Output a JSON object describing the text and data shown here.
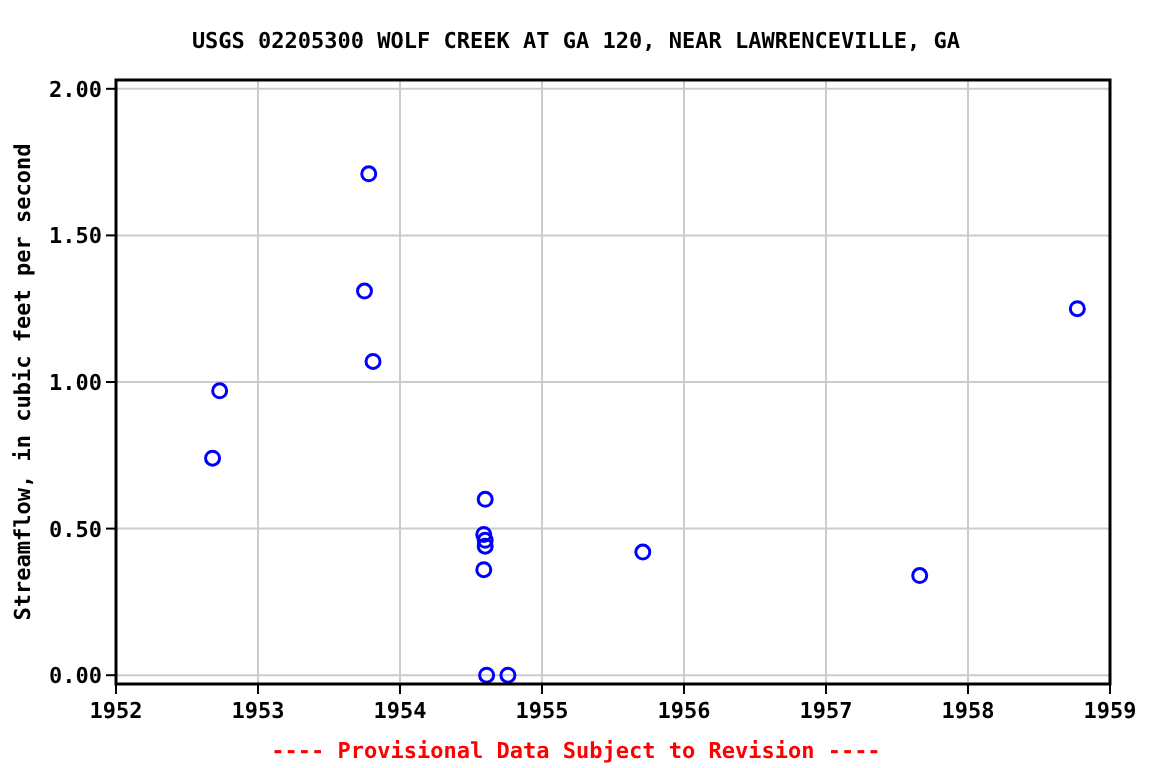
{
  "chart_data": {
    "type": "scatter",
    "title": "USGS 02205300 WOLF CREEK AT GA 120, NEAR LAWRENCEVILLE, GA",
    "ylabel": "Streamflow, in cubic feet per second",
    "annotations": [
      "---- Provisional Data Subject to Revision ----"
    ],
    "x": [
      1952.68,
      1952.73,
      1953.75,
      1953.78,
      1953.81,
      1954.6,
      1954.59,
      1954.6,
      1954.6,
      1954.59,
      1954.61,
      1954.76,
      1955.71,
      1957.66,
      1958.77
    ],
    "series": [
      {
        "color": "#0000ff",
        "values": [
          0.74,
          0.97,
          1.31,
          1.71,
          1.07,
          0.6,
          0.48,
          0.46,
          0.44,
          0.36,
          0,
          0,
          0.42,
          0.34,
          1.25
        ]
      }
    ],
    "xlim": [
      1952,
      1959
    ],
    "xticks": [
      1952,
      1953,
      1954,
      1955,
      1956,
      1957,
      1958,
      1959
    ],
    "ylim": [
      -0.03,
      2.03
    ],
    "yticks": [
      {
        "value": 0,
        "label": "0.00"
      },
      {
        "value": 0.5,
        "label": "0.50"
      },
      {
        "value": 1,
        "label": "1.00"
      },
      {
        "value": 1.5,
        "label": "1.50"
      },
      {
        "value": 2,
        "label": "2.00"
      }
    ],
    "grid": true,
    "marker": "circle"
  }
}
